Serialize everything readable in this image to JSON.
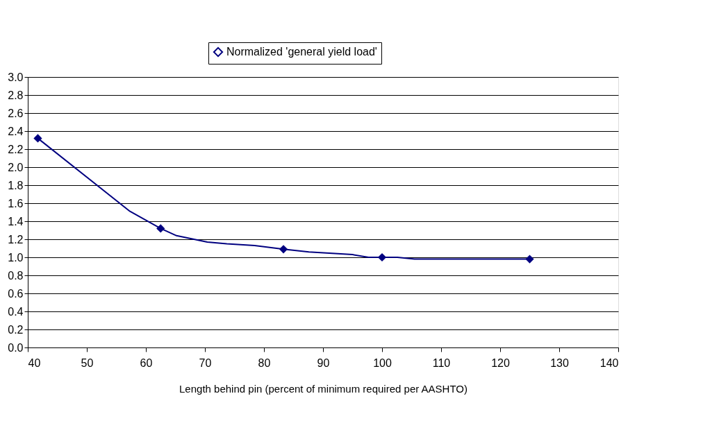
{
  "chart_data": {
    "type": "line",
    "xlabel": "Length behind pin (percent of minimum required per AASHTO)",
    "xlim": [
      40,
      140
    ],
    "xticks": [
      40,
      50,
      60,
      70,
      80,
      90,
      100,
      110,
      120,
      130,
      140
    ],
    "ylim": [
      0,
      3
    ],
    "yticks": [
      {
        "value": 0,
        "label": "0.0"
      },
      {
        "value": 0.2,
        "label": "0.2"
      },
      {
        "value": 0.4,
        "label": "0.4"
      },
      {
        "value": 0.6,
        "label": "0.6"
      },
      {
        "value": 0.8,
        "label": "0.8"
      },
      {
        "value": 1,
        "label": "1.0"
      },
      {
        "value": 1.2,
        "label": "1.2"
      },
      {
        "value": 1.4,
        "label": "1.4"
      },
      {
        "value": 1.6,
        "label": "1.6"
      },
      {
        "value": 1.8,
        "label": "1.8"
      },
      {
        "value": 2,
        "label": "2.0"
      },
      {
        "value": 2.2,
        "label": "2.2"
      },
      {
        "value": 2.4,
        "label": "2.4"
      },
      {
        "value": 2.6,
        "label": "2.6"
      },
      {
        "value": 2.8,
        "label": "2.8"
      },
      {
        "value": 3,
        "label": "3.0"
      }
    ],
    "grid": "y",
    "legend": "top",
    "series": [
      {
        "name": "Normalized 'general yield load'",
        "type": "line",
        "marker": "none",
        "color": "#000080",
        "x": [
          41.7,
          57.3,
          62.5,
          65.2,
          70.4,
          73.7,
          78.4,
          83.3,
          87.6,
          95.0,
          97.7,
          100,
          102.6,
          105.5,
          125
        ],
        "values": [
          2.32,
          1.51,
          1.32,
          1.24,
          1.17,
          1.15,
          1.13,
          1.09,
          1.06,
          1.03,
          1.0,
          1.0,
          1.0,
          0.98,
          0.98
        ]
      },
      {
        "type": "scatter",
        "marker": "diamond",
        "color": "#000080",
        "x": [
          41.7,
          62.5,
          83.3,
          100,
          125
        ],
        "values": [
          2.32,
          1.32,
          1.09,
          1.0,
          0.98
        ]
      }
    ]
  }
}
